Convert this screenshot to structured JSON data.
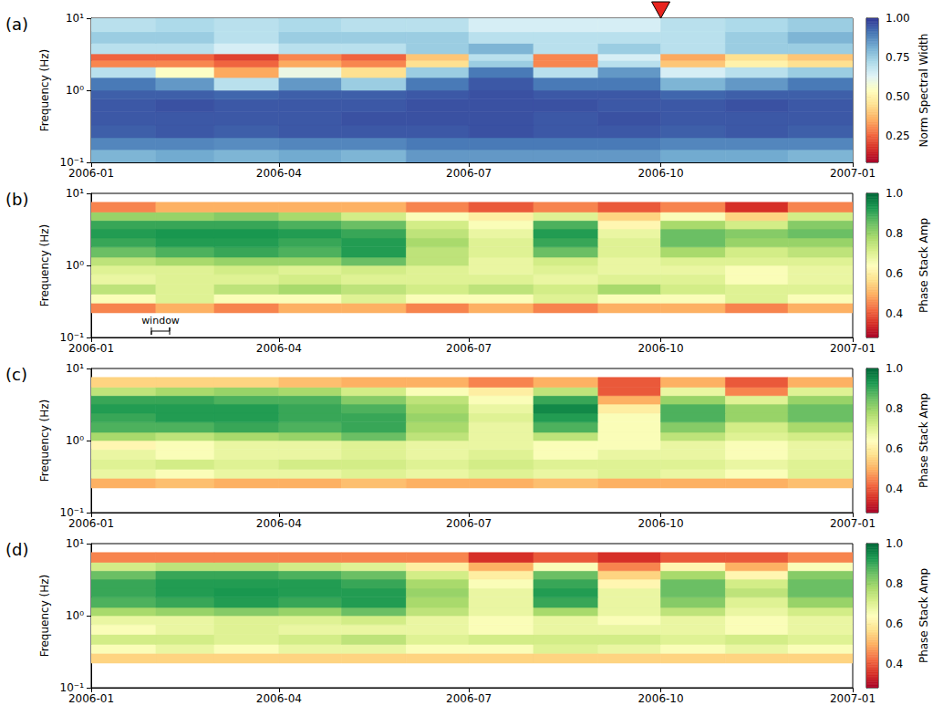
{
  "chart_data": [
    {
      "type": "heatmap",
      "panel_label": "(a)",
      "y_label": "Frequency (Hz)",
      "colorbar_label": "Norm Spectral Width",
      "log": "y",
      "color": "RdYlBu",
      "xlim": [
        "2006-01",
        "2007-01"
      ],
      "xticks": [
        "2006-01",
        "2006-04",
        "2006-07",
        "2006-10",
        "2007-01"
      ],
      "ylim": [
        0.1,
        10
      ],
      "yticks": [
        {
          "value": 0.1,
          "label": "10⁻¹"
        },
        {
          "value": 1,
          "label": "10⁰"
        },
        {
          "value": 10,
          "label": "10¹"
        }
      ],
      "x_edges": [
        "2006-01",
        "2006-02",
        "2006-03",
        "2006-04",
        "2006-05",
        "2006-06",
        "2006-07",
        "2006-08",
        "2006-09",
        "2006-10",
        "2006-11",
        "2006-12",
        "2007-01"
      ],
      "y_edges": [
        0.1,
        0.15,
        0.22,
        0.33,
        0.5,
        0.75,
        1,
        1.5,
        2.1,
        2.6,
        3.2,
        4.5,
        6.5,
        10
      ],
      "cells": [
        [
          0.8,
          0.82,
          0.8,
          0.82,
          0.8,
          0.85,
          0.85,
          0.85,
          0.85,
          0.82,
          0.82,
          0.8
        ],
        [
          0.88,
          0.88,
          0.87,
          0.88,
          0.88,
          0.9,
          0.9,
          0.9,
          0.9,
          0.88,
          0.88,
          0.88
        ],
        [
          0.94,
          0.95,
          0.94,
          0.95,
          0.95,
          0.95,
          0.96,
          0.95,
          0.95,
          0.94,
          0.95,
          0.94
        ],
        [
          0.95,
          0.95,
          0.95,
          0.95,
          0.96,
          0.96,
          0.96,
          0.95,
          0.96,
          0.95,
          0.95,
          0.95
        ],
        [
          0.95,
          0.96,
          0.95,
          0.95,
          0.95,
          0.96,
          0.96,
          0.96,
          0.95,
          0.95,
          0.96,
          0.95
        ],
        [
          0.94,
          0.94,
          0.93,
          0.94,
          0.94,
          0.95,
          0.96,
          0.95,
          0.95,
          0.93,
          0.94,
          0.94
        ],
        [
          0.9,
          0.85,
          0.7,
          0.85,
          0.75,
          0.9,
          0.95,
          0.9,
          0.9,
          0.8,
          0.85,
          0.9
        ],
        [
          0.7,
          0.55,
          0.35,
          0.6,
          0.45,
          0.75,
          0.9,
          0.7,
          0.85,
          0.65,
          0.7,
          0.75
        ],
        [
          0.3,
          0.3,
          0.25,
          0.35,
          0.3,
          0.45,
          0.75,
          0.3,
          0.7,
          0.4,
          0.5,
          0.45
        ],
        [
          0.25,
          0.25,
          0.2,
          0.3,
          0.25,
          0.4,
          0.7,
          0.3,
          0.65,
          0.35,
          0.45,
          0.4
        ],
        [
          0.7,
          0.7,
          0.65,
          0.7,
          0.7,
          0.75,
          0.8,
          0.7,
          0.75,
          0.7,
          0.75,
          0.75
        ],
        [
          0.75,
          0.75,
          0.7,
          0.75,
          0.75,
          0.75,
          0.7,
          0.7,
          0.7,
          0.7,
          0.75,
          0.8
        ],
        [
          0.7,
          0.72,
          0.7,
          0.72,
          0.7,
          0.7,
          0.65,
          0.65,
          0.65,
          0.7,
          0.72,
          0.75
        ]
      ],
      "colorbar_lim": [
        0.08,
        1.0
      ],
      "colorbar_ticks": [
        0.25,
        {
          "value": 0.5,
          "label": "0.50"
        },
        0.75,
        {
          "value": 1,
          "label": "1.00"
        }
      ],
      "annotations": [
        {
          "x": "2006-10",
          "marker": "triangle",
          "color": "#e8231e"
        }
      ]
    },
    {
      "type": "heatmap",
      "panel_label": "(b)",
      "y_label": "Frequency (Hz)",
      "colorbar_label": "Phase Stack Amp",
      "log": "y",
      "color": "RdYlGn",
      "xlim": [
        "2006-01",
        "2007-01"
      ],
      "xticks": [
        "2006-01",
        "2006-04",
        "2006-07",
        "2006-10",
        "2007-01"
      ],
      "ylim": [
        0.1,
        10
      ],
      "yticks": [
        {
          "value": 0.1,
          "label": "10⁻¹"
        },
        {
          "value": 1,
          "label": "10⁰"
        },
        {
          "value": 10,
          "label": "10¹"
        }
      ],
      "x_edges": [
        "2006-01",
        "2006-02",
        "2006-03",
        "2006-04",
        "2006-05",
        "2006-06",
        "2006-07",
        "2006-08",
        "2006-09",
        "2006-10",
        "2006-11",
        "2006-12",
        "2007-01"
      ],
      "y_edges": [
        0.22,
        0.3,
        0.4,
        0.55,
        0.75,
        1,
        1.3,
        1.8,
        2.4,
        3.2,
        4.2,
        5.5,
        7.5
      ],
      "cells": [
        [
          0.45,
          0.5,
          0.45,
          0.5,
          0.5,
          0.45,
          0.5,
          0.45,
          0.5,
          0.5,
          0.45,
          0.5
        ],
        [
          0.65,
          0.7,
          0.65,
          0.65,
          0.7,
          0.65,
          0.65,
          0.7,
          0.65,
          0.65,
          0.7,
          0.65
        ],
        [
          0.75,
          0.7,
          0.75,
          0.78,
          0.75,
          0.72,
          0.75,
          0.72,
          0.78,
          0.72,
          0.7,
          0.7
        ],
        [
          0.68,
          0.7,
          0.7,
          0.72,
          0.7,
          0.7,
          0.7,
          0.68,
          0.7,
          0.7,
          0.65,
          0.68
        ],
        [
          0.7,
          0.7,
          0.72,
          0.7,
          0.72,
          0.7,
          0.68,
          0.7,
          0.68,
          0.68,
          0.65,
          0.68
        ],
        [
          0.75,
          0.78,
          0.8,
          0.8,
          0.85,
          0.75,
          0.68,
          0.72,
          0.68,
          0.7,
          0.7,
          0.7
        ],
        [
          0.85,
          0.88,
          0.9,
          0.88,
          0.92,
          0.75,
          0.7,
          0.85,
          0.7,
          0.78,
          0.72,
          0.75
        ],
        [
          0.9,
          0.92,
          0.92,
          0.9,
          0.92,
          0.78,
          0.7,
          0.9,
          0.7,
          0.85,
          0.8,
          0.8
        ],
        [
          0.92,
          0.93,
          0.93,
          0.92,
          0.9,
          0.75,
          0.68,
          0.92,
          0.68,
          0.85,
          0.82,
          0.85
        ],
        [
          0.9,
          0.9,
          0.9,
          0.88,
          0.85,
          0.72,
          0.65,
          0.88,
          0.62,
          0.78,
          0.72,
          0.82
        ],
        [
          0.8,
          0.8,
          0.82,
          0.78,
          0.72,
          0.65,
          0.6,
          0.7,
          0.55,
          0.65,
          0.55,
          0.72
        ],
        [
          0.45,
          0.5,
          0.5,
          0.5,
          0.5,
          0.45,
          0.4,
          0.45,
          0.4,
          0.45,
          0.35,
          0.45
        ]
      ],
      "colorbar_lim": [
        0.28,
        1.0
      ],
      "colorbar_ticks": [
        0.4,
        0.6,
        0.8,
        {
          "value": 1,
          "label": "1.0"
        }
      ],
      "annotations": [
        {
          "text": "window"
        }
      ]
    },
    {
      "type": "heatmap",
      "panel_label": "(c)",
      "y_label": "Frequency (Hz)",
      "colorbar_label": "Phase Stack Amp",
      "log": "y",
      "color": "RdYlGn",
      "xlim": [
        "2006-01",
        "2007-01"
      ],
      "xticks": [
        "2006-01",
        "2006-04",
        "2006-07",
        "2006-10",
        "2007-01"
      ],
      "ylim": [
        0.1,
        10
      ],
      "yticks": [
        {
          "value": 0.1,
          "label": "10⁻¹"
        },
        {
          "value": 1,
          "label": "10⁰"
        },
        {
          "value": 10,
          "label": "10¹"
        }
      ],
      "x_edges": [
        "2006-01",
        "2006-02",
        "2006-03",
        "2006-04",
        "2006-05",
        "2006-06",
        "2006-07",
        "2006-08",
        "2006-09",
        "2006-10",
        "2006-11",
        "2006-12",
        "2007-01"
      ],
      "y_edges": [
        0.22,
        0.3,
        0.4,
        0.55,
        0.75,
        1,
        1.3,
        1.8,
        2.4,
        3.2,
        4.2,
        5.5,
        7.5
      ],
      "cells": [
        [
          0.5,
          0.52,
          0.5,
          0.5,
          0.52,
          0.5,
          0.5,
          0.52,
          0.5,
          0.5,
          0.5,
          0.52
        ],
        [
          0.68,
          0.65,
          0.68,
          0.68,
          0.7,
          0.68,
          0.7,
          0.68,
          0.7,
          0.68,
          0.65,
          0.7
        ],
        [
          0.7,
          0.72,
          0.7,
          0.72,
          0.72,
          0.7,
          0.72,
          0.7,
          0.7,
          0.7,
          0.68,
          0.7
        ],
        [
          0.68,
          0.65,
          0.68,
          0.68,
          0.7,
          0.68,
          0.7,
          0.65,
          0.68,
          0.68,
          0.65,
          0.68
        ],
        [
          0.62,
          0.65,
          0.68,
          0.68,
          0.7,
          0.68,
          0.68,
          0.65,
          0.65,
          0.68,
          0.65,
          0.68
        ],
        [
          0.78,
          0.75,
          0.78,
          0.8,
          0.85,
          0.75,
          0.68,
          0.75,
          0.65,
          0.75,
          0.7,
          0.72
        ],
        [
          0.88,
          0.88,
          0.9,
          0.88,
          0.9,
          0.78,
          0.68,
          0.88,
          0.65,
          0.82,
          0.72,
          0.78
        ],
        [
          0.9,
          0.92,
          0.92,
          0.9,
          0.9,
          0.8,
          0.7,
          0.92,
          0.65,
          0.88,
          0.8,
          0.85
        ],
        [
          0.92,
          0.92,
          0.92,
          0.9,
          0.88,
          0.78,
          0.68,
          0.95,
          0.6,
          0.88,
          0.8,
          0.85
        ],
        [
          0.9,
          0.9,
          0.88,
          0.88,
          0.82,
          0.75,
          0.65,
          0.9,
          0.5,
          0.8,
          0.7,
          0.8
        ],
        [
          0.75,
          0.78,
          0.8,
          0.78,
          0.72,
          0.65,
          0.6,
          0.75,
          0.4,
          0.68,
          0.45,
          0.7
        ],
        [
          0.55,
          0.55,
          0.55,
          0.52,
          0.5,
          0.5,
          0.45,
          0.5,
          0.4,
          0.5,
          0.4,
          0.5
        ]
      ],
      "colorbar_lim": [
        0.28,
        1.0
      ],
      "colorbar_ticks": [
        0.4,
        0.6,
        0.8,
        {
          "value": 1,
          "label": "1.0"
        }
      ]
    },
    {
      "type": "heatmap",
      "panel_label": "(d)",
      "y_label": "Frequency (Hz)",
      "colorbar_label": "Phase Stack Amp",
      "log": "y",
      "color": "RdYlGn",
      "xlim": [
        "2006-01",
        "2007-01"
      ],
      "xticks": [
        "2006-01",
        "2006-04",
        "2006-07",
        "2006-10",
        "2007-01"
      ],
      "ylim": [
        0.1,
        10
      ],
      "yticks": [
        {
          "value": 0.1,
          "label": "10⁻¹"
        },
        {
          "value": 1,
          "label": "10⁰"
        },
        {
          "value": 10,
          "label": "10¹"
        }
      ],
      "x_edges": [
        "2006-01",
        "2006-02",
        "2006-03",
        "2006-04",
        "2006-05",
        "2006-06",
        "2006-07",
        "2006-08",
        "2006-09",
        "2006-10",
        "2006-11",
        "2006-12",
        "2007-01"
      ],
      "y_edges": [
        0.22,
        0.3,
        0.4,
        0.55,
        0.75,
        1,
        1.3,
        1.8,
        2.4,
        3.2,
        4.2,
        5.5,
        7.5
      ],
      "cells": [
        [
          0.55,
          0.55,
          0.55,
          0.55,
          0.55,
          0.55,
          0.55,
          0.55,
          0.55,
          0.55,
          0.55,
          0.55
        ],
        [
          0.65,
          0.68,
          0.65,
          0.68,
          0.68,
          0.65,
          0.65,
          0.7,
          0.68,
          0.65,
          0.68,
          0.65
        ],
        [
          0.72,
          0.72,
          0.7,
          0.72,
          0.75,
          0.7,
          0.72,
          0.72,
          0.72,
          0.7,
          0.72,
          0.7
        ],
        [
          0.65,
          0.68,
          0.7,
          0.68,
          0.68,
          0.68,
          0.65,
          0.68,
          0.68,
          0.68,
          0.65,
          0.68
        ],
        [
          0.68,
          0.68,
          0.7,
          0.7,
          0.72,
          0.68,
          0.65,
          0.68,
          0.65,
          0.68,
          0.65,
          0.68
        ],
        [
          0.78,
          0.8,
          0.82,
          0.8,
          0.85,
          0.75,
          0.68,
          0.78,
          0.68,
          0.75,
          0.68,
          0.72
        ],
        [
          0.88,
          0.9,
          0.92,
          0.9,
          0.92,
          0.78,
          0.68,
          0.9,
          0.68,
          0.82,
          0.7,
          0.8
        ],
        [
          0.9,
          0.92,
          0.93,
          0.92,
          0.92,
          0.8,
          0.68,
          0.92,
          0.68,
          0.85,
          0.75,
          0.85
        ],
        [
          0.9,
          0.92,
          0.92,
          0.92,
          0.9,
          0.78,
          0.65,
          0.9,
          0.62,
          0.85,
          0.72,
          0.85
        ],
        [
          0.85,
          0.9,
          0.9,
          0.88,
          0.85,
          0.72,
          0.6,
          0.85,
          0.55,
          0.78,
          0.62,
          0.82
        ],
        [
          0.72,
          0.75,
          0.75,
          0.72,
          0.7,
          0.6,
          0.5,
          0.65,
          0.45,
          0.62,
          0.5,
          0.65
        ],
        [
          0.45,
          0.45,
          0.45,
          0.45,
          0.45,
          0.45,
          0.35,
          0.4,
          0.35,
          0.4,
          0.4,
          0.45
        ]
      ],
      "colorbar_lim": [
        0.28,
        1.0
      ],
      "colorbar_ticks": [
        0.4,
        0.6,
        0.8,
        {
          "value": 1,
          "label": "1.0"
        }
      ]
    }
  ]
}
